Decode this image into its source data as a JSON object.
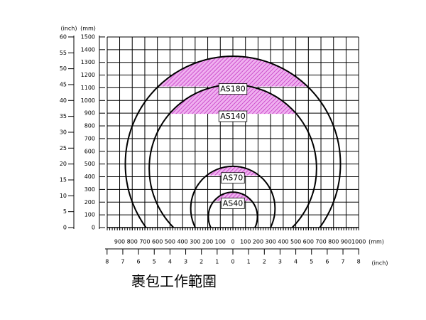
{
  "axes": {
    "y_inch_unit": "(inch)",
    "y_mm_unit": "(mm)",
    "y_inch_ticks": [
      60,
      55,
      50,
      45,
      40,
      35,
      30,
      25,
      20,
      15,
      10,
      5,
      0
    ],
    "y_mm_ticks": [
      1500,
      1400,
      1300,
      1200,
      1100,
      1000,
      900,
      800,
      700,
      600,
      500,
      400,
      300,
      200,
      100,
      0
    ],
    "x_mm_ticks": [
      {
        "value": -900,
        "label": "900"
      },
      {
        "value": -800,
        "label": "800"
      },
      {
        "value": -700,
        "label": "700"
      },
      {
        "value": -600,
        "label": "600"
      },
      {
        "value": -500,
        "label": "500"
      },
      {
        "value": -400,
        "label": "400"
      },
      {
        "value": -300,
        "label": "300"
      },
      {
        "value": -200,
        "label": "200"
      },
      {
        "value": -100,
        "label": "100"
      },
      0,
      100,
      200,
      300,
      400,
      500,
      600,
      700,
      800,
      900,
      1000
    ],
    "x_mm_unit": "(mm)",
    "x_inch_ticks": [
      {
        "value": -8,
        "label": "8"
      },
      {
        "value": -7,
        "label": "7"
      },
      {
        "value": -6,
        "label": "6"
      },
      {
        "value": -5,
        "label": "5"
      },
      {
        "value": -4,
        "label": "4"
      },
      {
        "value": -3,
        "label": "3"
      },
      {
        "value": -2,
        "label": "2"
      },
      {
        "value": -1,
        "label": "1"
      },
      0,
      1,
      2,
      3,
      4,
      5,
      6,
      7,
      8
    ],
    "x_inch_unit": "(inch)"
  },
  "ranges": [
    {
      "label": "AS180",
      "center_height": 500,
      "radius": 855,
      "band_bottom": 1110
    },
    {
      "label": "AS140",
      "center_height": 465,
      "radius": 665,
      "band_bottom": 895
    },
    {
      "label": "AS70",
      "center_height": 150,
      "radius": 335,
      "band_bottom": 410
    },
    {
      "label": "AS40",
      "center_height": 85,
      "radius": 195,
      "band_bottom": 210
    }
  ],
  "caption": "裹包工作範圍"
}
